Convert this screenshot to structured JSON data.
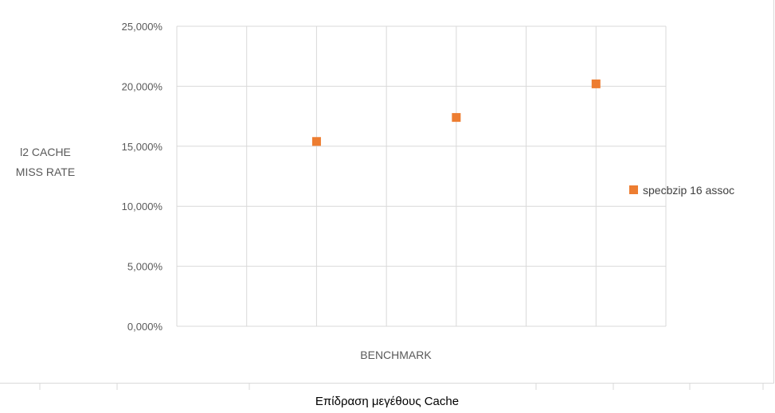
{
  "chart_data": {
    "type": "scatter",
    "title": "",
    "xlabel": "BENCHMARK",
    "ylabel_lines": [
      "l2 CACHE",
      "MISS RATE"
    ],
    "ylim": [
      0,
      25
    ],
    "y_ticks": [
      "0,000%",
      "5,000%",
      "10,000%",
      "15,000%",
      "20,000%",
      "25,000%"
    ],
    "y_tick_values": [
      0,
      5,
      10,
      15,
      20,
      25
    ],
    "xlim": [
      0,
      7
    ],
    "x_gridlines": [
      0,
      1,
      2,
      3,
      4,
      5,
      6,
      7
    ],
    "grid": true,
    "legend_position": "right",
    "series": [
      {
        "name": "specbzip 16 assoc",
        "color": "#ed7d31",
        "marker": "square",
        "points": [
          {
            "x": 2,
            "y": 15.4
          },
          {
            "x": 4,
            "y": 17.4
          },
          {
            "x": 6,
            "y": 20.2
          }
        ]
      }
    ]
  },
  "caption": "Επίδραση μεγέθους Cache",
  "colors": {
    "grid": "#d9d9d9",
    "marker": "#ed7d31"
  }
}
